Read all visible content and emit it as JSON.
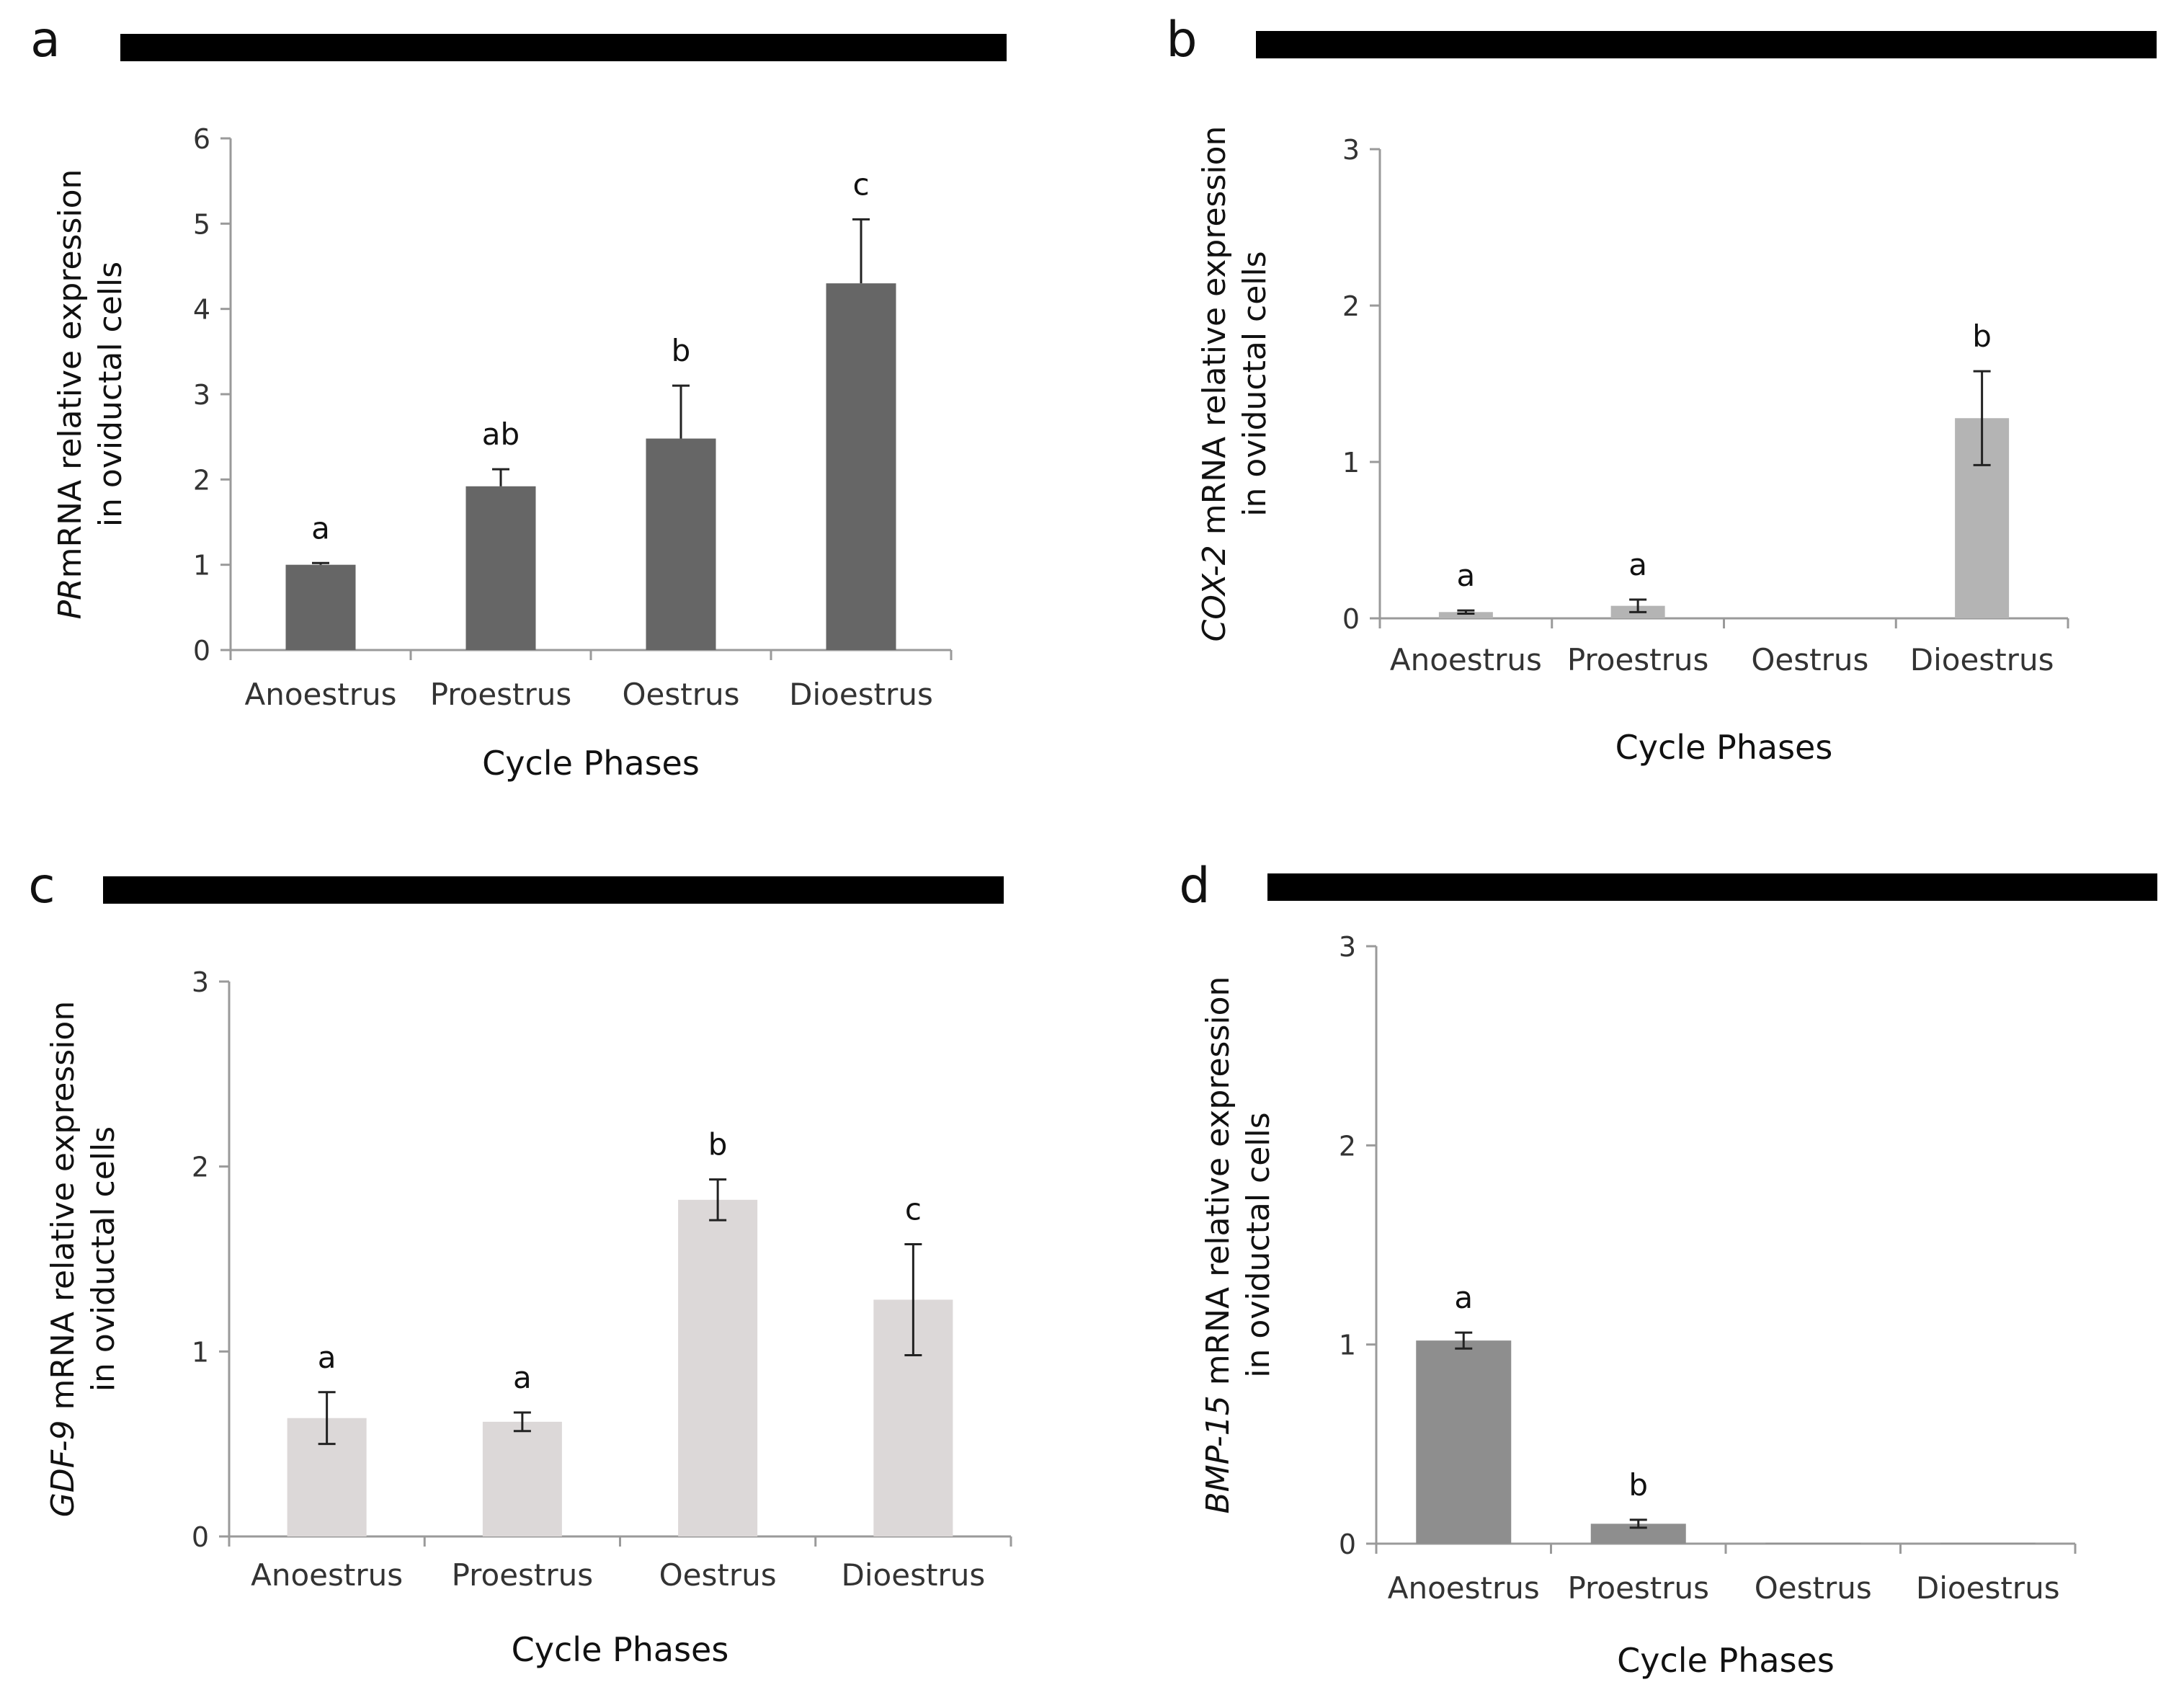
{
  "chart_data": [
    {
      "type": "bar",
      "panel_label": "a",
      "gene": "PR",
      "ylabel_rest": "mRNA relative expression",
      "ylabel_line2": "in oviductal cells",
      "xlabel": "Cycle Phases",
      "categories": [
        "Anoestrus",
        "Proestrus",
        "Oestrus",
        "Dioestrus"
      ],
      "values": [
        1.0,
        1.92,
        2.48,
        4.3
      ],
      "errors": [
        0.02,
        0.2,
        0.62,
        0.75
      ],
      "error_style": "upper",
      "significance": [
        "a",
        "ab",
        "b",
        "c"
      ],
      "ylim": [
        0,
        6
      ],
      "yticks": [
        "0",
        "1",
        "2",
        "3",
        "4",
        "5",
        "6"
      ],
      "bar_color": "#666666"
    },
    {
      "type": "bar",
      "panel_label": "b",
      "gene": "COX-2",
      "ylabel_rest": " mRNA relative expression",
      "ylabel_line2": "in oviductal cells",
      "xlabel": "Cycle Phases",
      "categories": [
        "Anoestrus",
        "Proestrus",
        "Oestrus",
        "Dioestrus"
      ],
      "values": [
        0.04,
        0.08,
        0.0,
        1.28
      ],
      "errors": [
        0.01,
        0.04,
        0.0,
        0.3
      ],
      "error_style": "both",
      "significance": [
        "a",
        "a",
        "",
        "b"
      ],
      "ylim": [
        0,
        3
      ],
      "yticks": [
        "0",
        "1",
        "2",
        "3"
      ],
      "bar_color": "#b4b4b4"
    },
    {
      "type": "bar",
      "panel_label": "c",
      "gene": "GDF-9",
      "ylabel_rest": " mRNA relative expression",
      "ylabel_line2": "in oviductal cells",
      "xlabel": "Cycle Phases",
      "categories": [
        "Anoestrus",
        "Proestrus",
        "Oestrus",
        "Dioestrus"
      ],
      "values": [
        0.64,
        0.62,
        1.82,
        1.28
      ],
      "errors": [
        0.14,
        0.05,
        0.11,
        0.3
      ],
      "error_style": "both",
      "significance": [
        "a",
        "a",
        "b",
        "c"
      ],
      "ylim": [
        0,
        3
      ],
      "yticks": [
        "0",
        "1",
        "2",
        "3"
      ],
      "bar_color": "#dcd8d8"
    },
    {
      "type": "bar",
      "panel_label": "d",
      "gene": "BMP-15",
      "ylabel_rest": " mRNA relative expression",
      "ylabel_line2": "in oviductal cells",
      "xlabel": "Cycle Phases",
      "categories": [
        "Anoestrus",
        "Proestrus",
        "Oestrus",
        "Dioestrus"
      ],
      "values": [
        1.02,
        0.1,
        0.005,
        0.005
      ],
      "errors": [
        0.04,
        0.02,
        0.0,
        0.0
      ],
      "error_style": "both",
      "significance": [
        "a",
        "b",
        "",
        ""
      ],
      "ylim": [
        0,
        3
      ],
      "yticks": [
        "0",
        "1",
        "2",
        "3"
      ],
      "bar_color": "#8e8e8e"
    }
  ]
}
